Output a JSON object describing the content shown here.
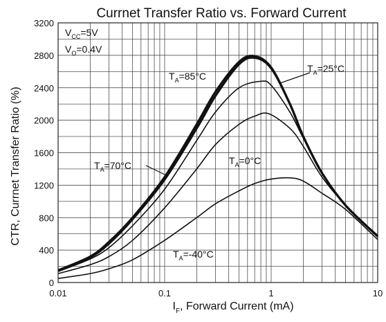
{
  "chart_data": {
    "type": "line",
    "title": "Currnet Transfer Ratio vs. Forward Current",
    "xlabel": {
      "main": "I",
      "sub": "F",
      "rest": ", Forward Current (mA)"
    },
    "ylabel": "CTR, Currnet Transfer Ratio (%)",
    "x_scale": "log",
    "xlim": [
      0.01,
      10
    ],
    "ylim": [
      0,
      3200
    ],
    "x_ticks": [
      "0.01",
      "0.1",
      "1",
      "10"
    ],
    "y_ticks": [
      "0",
      "400",
      "800",
      "1200",
      "1600",
      "2000",
      "2400",
      "2800",
      "3200"
    ],
    "grid": true,
    "conditions": [
      {
        "main": "V",
        "sub": "CC",
        "rest": "=5V"
      },
      {
        "main": "V",
        "sub": "O",
        "rest": "=0.4V"
      }
    ],
    "series": [
      {
        "name": {
          "main": "T",
          "sub": "A",
          "rest": "=85°C"
        },
        "bold": true,
        "x": [
          0.01,
          0.02,
          0.03,
          0.05,
          0.1,
          0.2,
          0.3,
          0.5,
          0.7,
          1,
          1.5,
          2,
          3,
          5,
          10
        ],
        "y": [
          150,
          320,
          500,
          800,
          1300,
          1950,
          2350,
          2720,
          2790,
          2650,
          2200,
          1800,
          1350,
          950,
          570
        ]
      },
      {
        "name": {
          "main": "T",
          "sub": "A",
          "rest": "=25°C"
        },
        "bold": false,
        "x": [
          0.01,
          0.02,
          0.03,
          0.05,
          0.1,
          0.2,
          0.3,
          0.5,
          0.8,
          1,
          1.5,
          2,
          3,
          5,
          10
        ],
        "y": [
          135,
          290,
          430,
          700,
          1150,
          1750,
          2100,
          2400,
          2480,
          2430,
          2100,
          1780,
          1350,
          950,
          560
        ]
      },
      {
        "name": {
          "main": "T",
          "sub": "A",
          "rest": "=70°C"
        },
        "bold": true,
        "x": [
          0.01,
          0.02,
          0.03,
          0.05,
          0.1,
          0.2,
          0.3,
          0.5,
          0.7,
          1,
          1.5,
          2,
          3,
          5,
          10
        ],
        "y": [
          145,
          310,
          480,
          780,
          1270,
          1900,
          2300,
          2690,
          2770,
          2640,
          2200,
          1800,
          1350,
          950,
          570
        ]
      },
      {
        "name": {
          "main": "T",
          "sub": "A",
          "rest": "=0°C"
        },
        "bold": false,
        "x": [
          0.01,
          0.02,
          0.03,
          0.05,
          0.1,
          0.2,
          0.3,
          0.5,
          0.7,
          0.95,
          1.5,
          2,
          3,
          5,
          10
        ],
        "y": [
          110,
          220,
          320,
          520,
          920,
          1400,
          1700,
          1950,
          2050,
          2080,
          1900,
          1680,
          1300,
          950,
          560
        ]
      },
      {
        "name": {
          "main": "T",
          "sub": "A",
          "rest": "=-40°C"
        },
        "bold": false,
        "x": [
          0.01,
          0.02,
          0.03,
          0.05,
          0.1,
          0.2,
          0.3,
          0.5,
          0.7,
          1,
          1.5,
          2,
          3,
          5,
          10
        ],
        "y": [
          50,
          110,
          170,
          280,
          520,
          800,
          970,
          1130,
          1220,
          1275,
          1290,
          1250,
          1100,
          900,
          530
        ]
      }
    ]
  }
}
